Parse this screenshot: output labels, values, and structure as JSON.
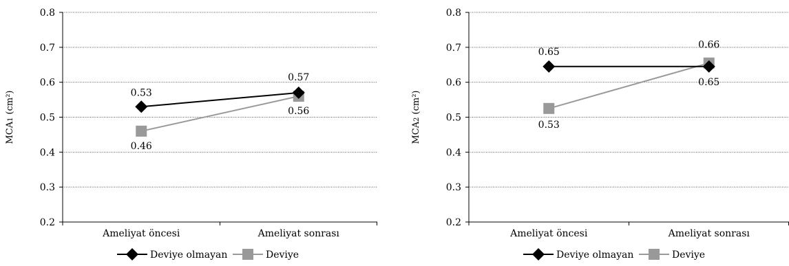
{
  "chart_data": [
    {
      "type": "line",
      "ylabel": "MCA1 (cm²)",
      "ylabel_main": "MCA",
      "ylabel_sub": "1",
      "ylabel_unit": "(cm²)",
      "ylim": [
        0.2,
        0.8
      ],
      "yticks": [
        "0.2",
        "0.3",
        "0.4",
        "0.5",
        "0.6",
        "0.7",
        "0.8"
      ],
      "grid": true,
      "categories": [
        "Ameliyat öncesi",
        "Ameliyat sonrası"
      ],
      "series": [
        {
          "name": "Deviye olmayan",
          "values": [
            0.53,
            0.57
          ],
          "labels": [
            "0.53",
            "0.57"
          ],
          "color": "#000000",
          "marker": "diamond"
        },
        {
          "name": "Deviye",
          "values": [
            0.46,
            0.56
          ],
          "labels": [
            "0.46",
            "0.56"
          ],
          "color": "#999999",
          "marker": "square"
        }
      ],
      "legend": "bottom"
    },
    {
      "type": "line",
      "ylabel": "MCA2 (cm²)",
      "ylabel_main": "MCA",
      "ylabel_sub": "2",
      "ylabel_unit": "(cm²)",
      "ylim": [
        0.2,
        0.8
      ],
      "yticks": [
        "0.2",
        "0.3",
        "0.4",
        "0.5",
        "0.6",
        "0.7",
        "0.8"
      ],
      "grid": true,
      "categories": [
        "Ameliyat öncesi",
        "Ameliyat sonrası"
      ],
      "series": [
        {
          "name": "Deviye olmayan",
          "values": [
            0.645,
            0.645
          ],
          "labels": [
            "0.65",
            "0.65"
          ],
          "color": "#000000",
          "marker": "diamond"
        },
        {
          "name": "Deviye",
          "values": [
            0.525,
            0.655
          ],
          "labels": [
            "0.53",
            "0.66"
          ],
          "color": "#999999",
          "marker": "square"
        }
      ],
      "legend": "bottom"
    }
  ]
}
